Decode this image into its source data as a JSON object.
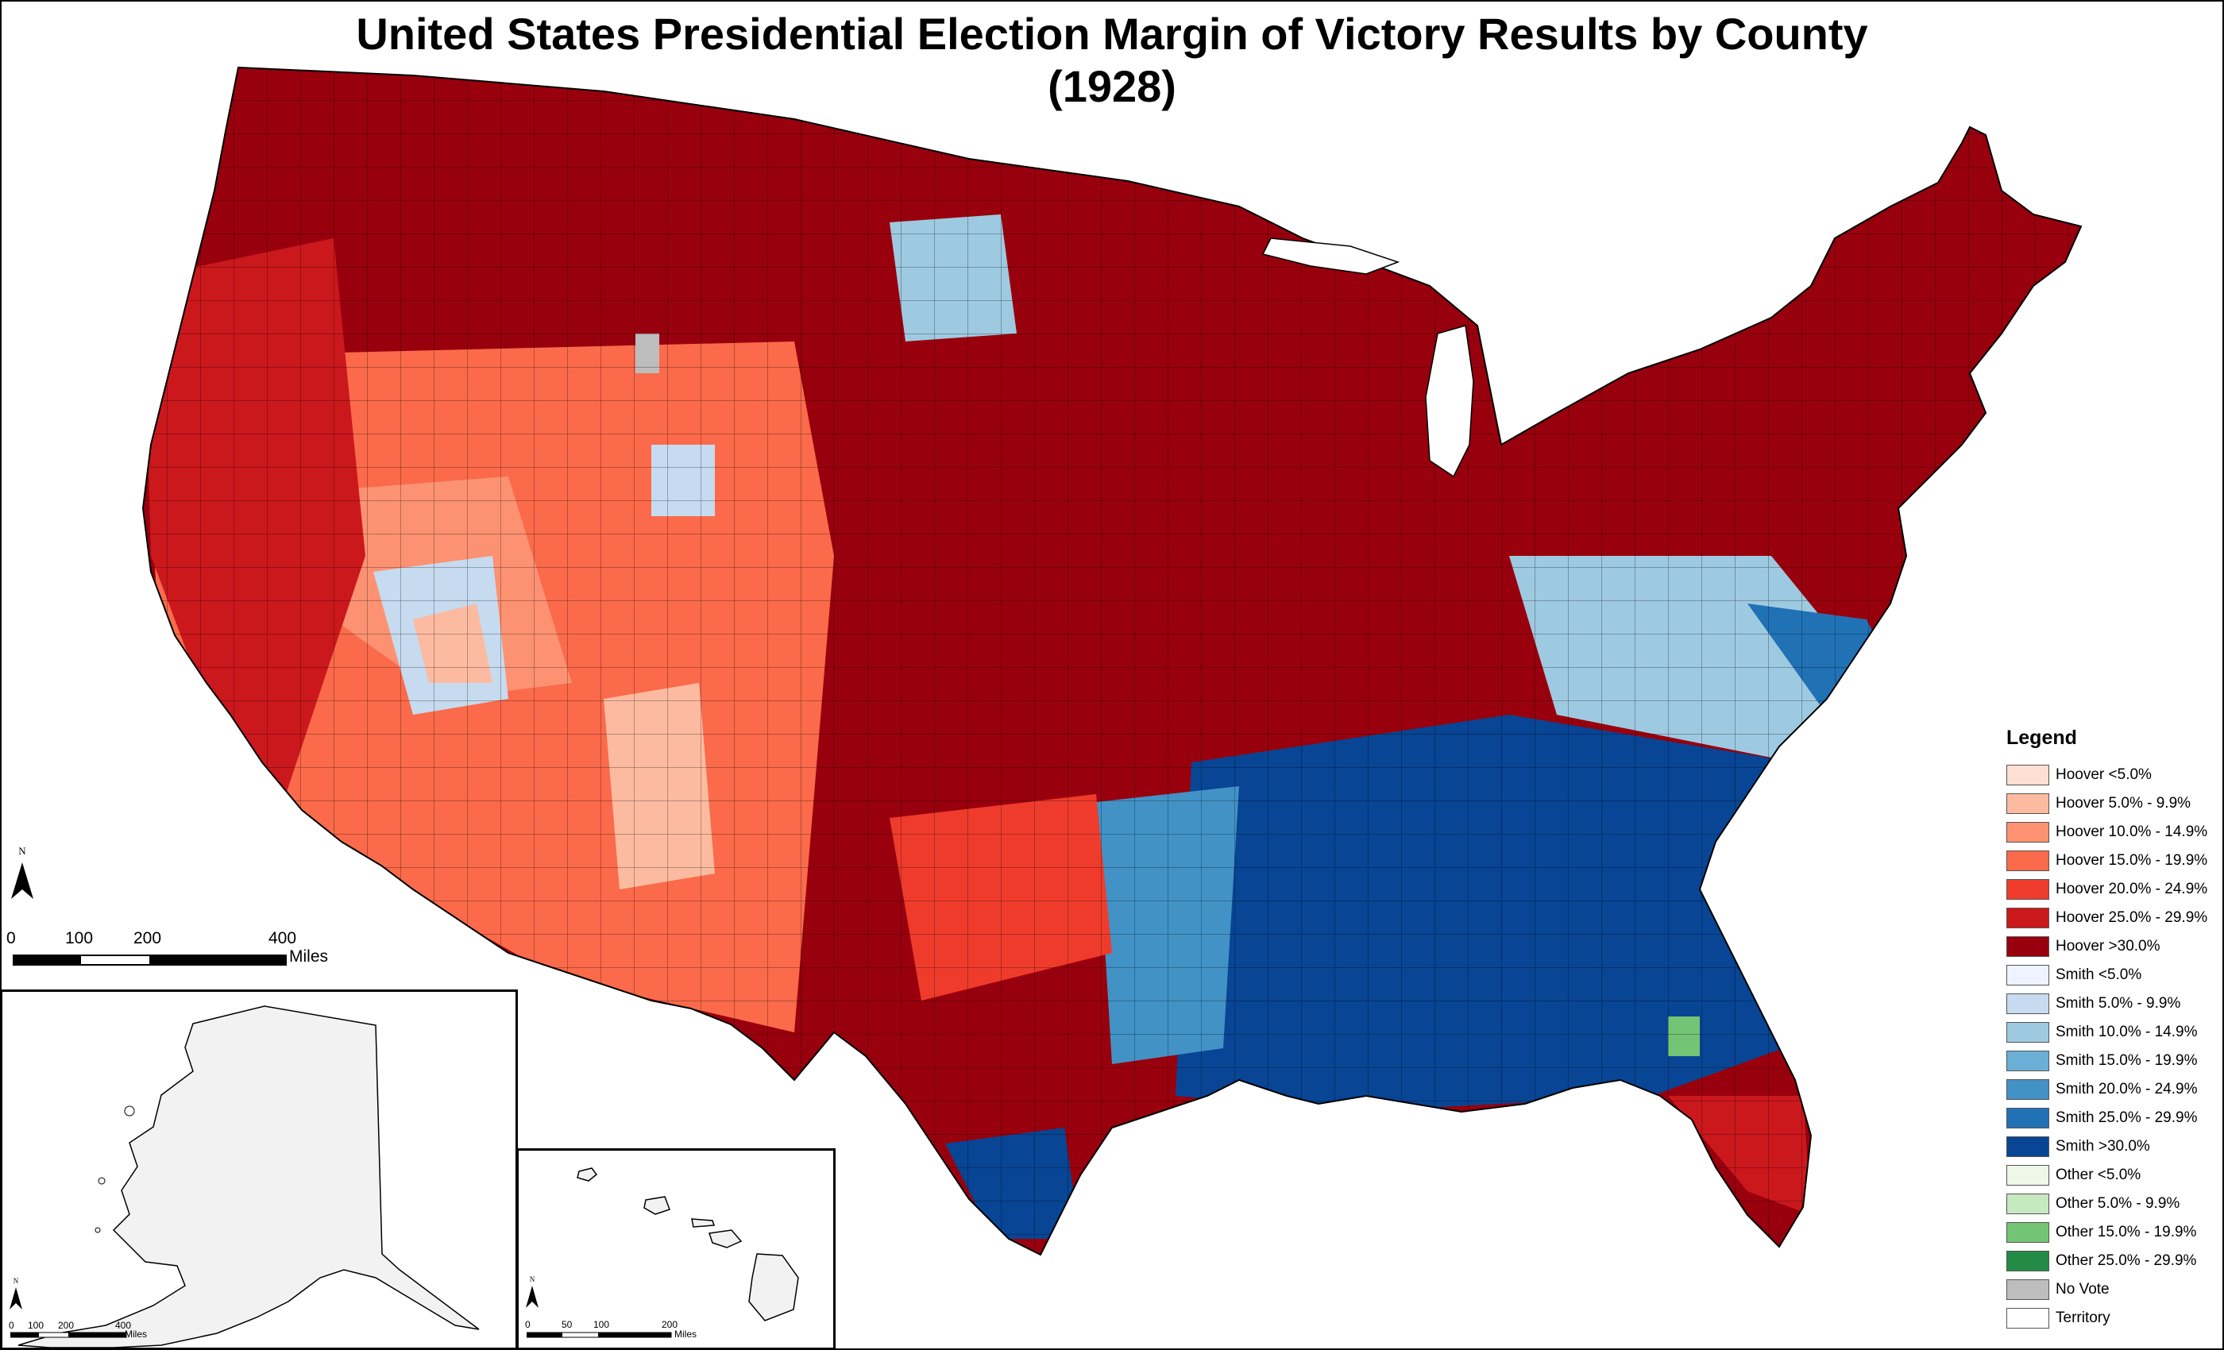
{
  "title": {
    "line1": "United States Presidential Election Margin of Victory Results by County",
    "line2": "(1928)"
  },
  "legend": {
    "title": "Legend",
    "items": [
      {
        "label": "Hoover <5.0%",
        "color": "#fde0d2"
      },
      {
        "label": "Hoover 5.0% - 9.9%",
        "color": "#fcbba1"
      },
      {
        "label": "Hoover 10.0% - 14.9%",
        "color": "#fc9272"
      },
      {
        "label": "Hoover 15.0% - 19.9%",
        "color": "#fb6a4a"
      },
      {
        "label": "Hoover 20.0% - 24.9%",
        "color": "#ef3b2c"
      },
      {
        "label": "Hoover 25.0% - 29.9%",
        "color": "#cb181d"
      },
      {
        "label": "Hoover >30.0%",
        "color": "#99000d"
      },
      {
        "label": "Smith <5.0%",
        "color": "#eff3ff"
      },
      {
        "label": "Smith 5.0% - 9.9%",
        "color": "#c6dbef"
      },
      {
        "label": "Smith 10.0% - 14.9%",
        "color": "#9ecae1"
      },
      {
        "label": "Smith 15.0% - 19.9%",
        "color": "#6baed6"
      },
      {
        "label": "Smith 20.0% - 24.9%",
        "color": "#4292c6"
      },
      {
        "label": "Smith 25.0% - 29.9%",
        "color": "#2171b5"
      },
      {
        "label": "Smith >30.0%",
        "color": "#084594"
      },
      {
        "label": "Other <5.0%",
        "color": "#edf8e9"
      },
      {
        "label": "Other 5.0% - 9.9%",
        "color": "#c7e9c0"
      },
      {
        "label": "Other 15.0% - 19.9%",
        "color": "#74c476"
      },
      {
        "label": "Other 25.0% - 29.9%",
        "color": "#238b45"
      },
      {
        "label": "No Vote",
        "color": "#bdbdbd"
      },
      {
        "label": "Territory",
        "color": "#ffffff"
      }
    ]
  },
  "scale_main": {
    "ticks": [
      "0",
      "100",
      "200",
      "400"
    ],
    "unit": "Miles"
  },
  "scale_alaska": {
    "ticks": [
      "0",
      "100",
      "200",
      "400"
    ],
    "unit": "Miles"
  },
  "scale_hawaii": {
    "ticks": [
      "0",
      "50",
      "100",
      "200"
    ],
    "unit": "Miles"
  },
  "north_label": "N",
  "alaska_fill": "#f2f2f2"
}
